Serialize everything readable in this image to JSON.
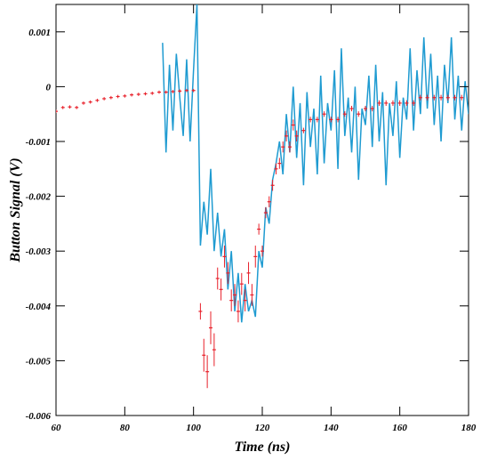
{
  "chart_data": {
    "type": "line",
    "x_label": "Time (ns)",
    "y_label": "Button Signal (V)",
    "xlim": [
      60,
      180
    ],
    "xticks": [
      60,
      80,
      100,
      120,
      140,
      160,
      180
    ],
    "ylim": [
      -0.006,
      0.0015
    ],
    "yticks": [
      -0.006,
      -0.005,
      -0.004,
      -0.003,
      -0.002,
      -0.001,
      0,
      0.001
    ],
    "series": [
      {
        "type": "line",
        "color": "#1f9bd1",
        "x": [
          91,
          92,
          93,
          94,
          95,
          96,
          97,
          98,
          99,
          100,
          101,
          102,
          103,
          104,
          105,
          106,
          107,
          108,
          109,
          110,
          111,
          112,
          113,
          114,
          115,
          116,
          117,
          118,
          119,
          120,
          121,
          122,
          123,
          124,
          125,
          126,
          127,
          128,
          129,
          130,
          131,
          132,
          133,
          134,
          135,
          136,
          137,
          138,
          139,
          140,
          141,
          142,
          143,
          144,
          145,
          146,
          147,
          148,
          149,
          150,
          151,
          152,
          153,
          154,
          155,
          156,
          157,
          158,
          159,
          160,
          161,
          162,
          163,
          164,
          165,
          166,
          167,
          168,
          169,
          170,
          171,
          172,
          173,
          174,
          175,
          176,
          177,
          178,
          179,
          180
        ],
        "values": [
          0.0008,
          -0.0012,
          0.0004,
          -0.0008,
          0.0006,
          -0.0002,
          -0.0009,
          0.0005,
          -0.001,
          0.0003,
          0.0015,
          -0.0029,
          -0.0021,
          -0.0027,
          -0.0015,
          -0.003,
          -0.0023,
          -0.0031,
          -0.0026,
          -0.0037,
          -0.003,
          -0.0041,
          -0.0034,
          -0.0043,
          -0.0036,
          -0.0041,
          -0.0039,
          -0.0042,
          -0.003,
          -0.0033,
          -0.0022,
          -0.0025,
          -0.0017,
          -0.0014,
          -0.001,
          -0.0016,
          -0.0005,
          -0.0012,
          0,
          -0.0013,
          -0.0003,
          -0.0018,
          -0.0001,
          -0.0011,
          -0.0004,
          -0.0016,
          0.0002,
          -0.0014,
          -0.0003,
          -0.0008,
          0.0003,
          -0.0015,
          0.0007,
          -0.0009,
          -0.0002,
          -0.0012,
          0,
          -0.0017,
          -0.0004,
          -0.0007,
          0.0002,
          -0.0011,
          0.0004,
          -0.001,
          -0.0001,
          -0.0018,
          -0.0003,
          -0.0009,
          0.0001,
          -0.0013,
          -0.0002,
          -0.0006,
          0.0007,
          -0.0008,
          0.0003,
          -0.0005,
          0.0009,
          -0.0004,
          0.0006,
          -0.0007,
          0.0002,
          -0.001,
          0.0004,
          -0.0003,
          0.0009,
          -0.0006,
          0.0002,
          -0.0008,
          0.0001,
          -0.0005
        ]
      },
      {
        "type": "errorbar",
        "color": "#e8202a",
        "x": [
          60,
          62,
          64,
          66,
          68,
          70,
          72,
          74,
          76,
          78,
          80,
          82,
          84,
          86,
          88,
          90,
          92,
          94,
          96,
          98,
          100,
          102,
          103,
          104,
          105,
          106,
          107,
          108,
          109,
          110,
          111,
          112,
          113,
          114,
          115,
          116,
          117,
          118,
          119,
          120,
          121,
          122,
          123,
          124,
          125,
          126,
          127,
          128,
          129,
          130,
          132,
          134,
          136,
          138,
          140,
          142,
          144,
          146,
          148,
          150,
          152,
          154,
          156,
          158,
          160,
          162,
          164,
          166,
          168,
          170,
          172,
          174,
          176,
          178
        ],
        "values": [
          -0.00045,
          -0.00038,
          -0.00037,
          -0.00038,
          -0.0003,
          -0.00028,
          -0.00025,
          -0.00022,
          -0.0002,
          -0.00018,
          -0.00017,
          -0.00015,
          -0.00014,
          -0.00013,
          -0.00012,
          -0.0001,
          -0.0001,
          -9e-05,
          -8e-05,
          -7e-05,
          -7e-05,
          -0.0041,
          -0.0049,
          -0.0052,
          -0.0044,
          -0.0048,
          -0.0035,
          -0.0037,
          -0.0031,
          -0.0034,
          -0.0039,
          -0.0038,
          -0.0041,
          -0.0036,
          -0.0039,
          -0.0034,
          -0.0038,
          -0.0031,
          -0.0026,
          -0.003,
          -0.0023,
          -0.0021,
          -0.0018,
          -0.0015,
          -0.0014,
          -0.0011,
          -0.0009,
          -0.0011,
          -0.0007,
          -0.0009,
          -0.0008,
          -0.0006,
          -0.0006,
          -0.0005,
          -0.0006,
          -0.0006,
          -0.0005,
          -0.0004,
          -0.0005,
          -0.0004,
          -0.0004,
          -0.0003,
          -0.0003,
          -0.0003,
          -0.0003,
          -0.0003,
          -0.0003,
          -0.0002,
          -0.0002,
          -0.0002,
          -0.0002,
          -0.0002,
          -0.0002,
          -0.0002
        ],
        "errors": [
          3e-05,
          3e-05,
          3e-05,
          3e-05,
          3e-05,
          3e-05,
          3e-05,
          3e-05,
          3e-05,
          3e-05,
          3e-05,
          3e-05,
          3e-05,
          3e-05,
          3e-05,
          3e-05,
          3e-05,
          3e-05,
          3e-05,
          3e-05,
          3e-05,
          0.00015,
          0.0003,
          0.0003,
          0.0003,
          0.0003,
          0.0002,
          0.0002,
          0.0002,
          0.0002,
          0.0002,
          0.0002,
          0.0002,
          0.0002,
          0.0002,
          0.0002,
          0.0002,
          0.0002,
          0.0001,
          0.0001,
          0.0001,
          0.0001,
          0.0001,
          0.0001,
          0.0001,
          0.0001,
          0.0001,
          0.0001,
          0.0001,
          0.0001,
          5e-05,
          5e-05,
          5e-05,
          5e-05,
          5e-05,
          5e-05,
          5e-05,
          5e-05,
          5e-05,
          5e-05,
          5e-05,
          5e-05,
          5e-05,
          5e-05,
          5e-05,
          5e-05,
          5e-05,
          5e-05,
          5e-05,
          5e-05,
          5e-05,
          5e-05,
          5e-05,
          5e-05
        ]
      }
    ]
  }
}
